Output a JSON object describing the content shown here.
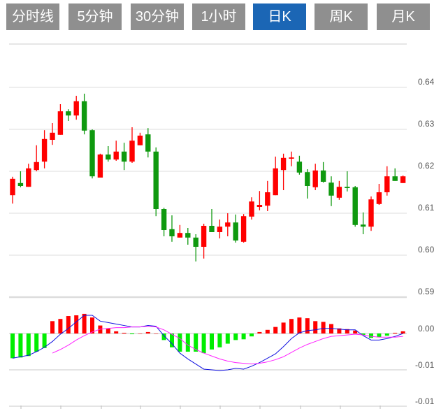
{
  "tabs": [
    {
      "label": "分时线",
      "active": false
    },
    {
      "label": "5分钟",
      "active": false
    },
    {
      "label": "30分钟",
      "active": false
    },
    {
      "label": "1小时",
      "active": false
    },
    {
      "label": "日K",
      "active": true
    },
    {
      "label": "周K",
      "active": false
    },
    {
      "label": "月K",
      "active": false
    }
  ],
  "colors": {
    "tab_bg": "#8f8f8f",
    "tab_active": "#1b66b5",
    "up": "#ff0000",
    "down": "#0f990f",
    "hist_up": "#ff0000",
    "hist_down": "#00ee00",
    "dif": "#1010e0",
    "dea": "#ff22ff"
  },
  "chart_data": [
    {
      "type": "candlestick",
      "title": "",
      "ylim": [
        0.59,
        0.64
      ],
      "yticks": [
        "0.64",
        "0.63",
        "0.62",
        "0.61",
        "0.60",
        "0.59"
      ],
      "ytick_values": [
        0.64,
        0.63,
        0.62,
        0.61,
        0.6,
        0.59
      ],
      "grid": true,
      "ohlc": [
        [
          0.6143,
          0.6187,
          0.6123,
          0.6182
        ],
        [
          0.6172,
          0.62,
          0.6162,
          0.6165
        ],
        [
          0.6163,
          0.6218,
          0.6163,
          0.6207
        ],
        [
          0.6203,
          0.6262,
          0.62,
          0.6222
        ],
        [
          0.6223,
          0.6298,
          0.6207,
          0.6277
        ],
        [
          0.6275,
          0.6315,
          0.6263,
          0.6292
        ],
        [
          0.6287,
          0.636,
          0.6287,
          0.6343
        ],
        [
          0.6343,
          0.6348,
          0.632,
          0.6333
        ],
        [
          0.6333,
          0.638,
          0.6323,
          0.6367
        ],
        [
          0.6367,
          0.6385,
          0.6288,
          0.6297
        ],
        [
          0.6298,
          0.63,
          0.6183,
          0.6188
        ],
        [
          0.6185,
          0.6242,
          0.6185,
          0.624
        ],
        [
          0.624,
          0.626,
          0.6223,
          0.6228
        ],
        [
          0.6228,
          0.6273,
          0.6225,
          0.6247
        ],
        [
          0.6247,
          0.6268,
          0.6203,
          0.6223
        ],
        [
          0.6223,
          0.6305,
          0.622,
          0.6273
        ],
        [
          0.6262,
          0.6292,
          0.6262,
          0.6285
        ],
        [
          0.6288,
          0.6303,
          0.6233,
          0.6247
        ],
        [
          0.6247,
          0.6257,
          0.6093,
          0.611
        ],
        [
          0.611,
          0.6113,
          0.6045,
          0.606
        ],
        [
          0.6062,
          0.6095,
          0.6032,
          0.6045
        ],
        [
          0.6042,
          0.6072,
          0.6042,
          0.6053
        ],
        [
          0.6053,
          0.6065,
          0.6025,
          0.6042
        ],
        [
          0.6042,
          0.605,
          0.5985,
          0.602
        ],
        [
          0.602,
          0.6075,
          0.5992,
          0.607
        ],
        [
          0.607,
          0.611,
          0.6055,
          0.6055
        ],
        [
          0.6055,
          0.6085,
          0.604,
          0.6068
        ],
        [
          0.6068,
          0.61,
          0.6045,
          0.6078
        ],
        [
          0.6078,
          0.6097,
          0.603,
          0.6035
        ],
        [
          0.6032,
          0.6098,
          0.603,
          0.6093
        ],
        [
          0.6092,
          0.6138,
          0.6085,
          0.6128
        ],
        [
          0.6115,
          0.6153,
          0.6107,
          0.612
        ],
        [
          0.6118,
          0.6177,
          0.6105,
          0.615
        ],
        [
          0.6143,
          0.6235,
          0.6143,
          0.6207
        ],
        [
          0.6203,
          0.6242,
          0.6155,
          0.6232
        ],
        [
          0.623,
          0.6247,
          0.6212,
          0.6233
        ],
        [
          0.6223,
          0.6237,
          0.6192,
          0.6197
        ],
        [
          0.6198,
          0.6205,
          0.6135,
          0.6165
        ],
        [
          0.6162,
          0.6218,
          0.6155,
          0.6202
        ],
        [
          0.6202,
          0.6222,
          0.6173,
          0.6175
        ],
        [
          0.6173,
          0.6188,
          0.6117,
          0.6142
        ],
        [
          0.6137,
          0.6177,
          0.6132,
          0.6163
        ],
        [
          0.6163,
          0.62,
          0.6152,
          0.616
        ],
        [
          0.6162,
          0.6165,
          0.6068,
          0.6072
        ],
        [
          0.6073,
          0.6102,
          0.605,
          0.6068
        ],
        [
          0.6068,
          0.614,
          0.6058,
          0.6133
        ],
        [
          0.6122,
          0.617,
          0.612,
          0.615
        ],
        [
          0.615,
          0.6212,
          0.6142,
          0.6188
        ],
        [
          0.6188,
          0.6207,
          0.6177,
          0.6177
        ],
        [
          0.6172,
          0.619,
          0.6172,
          0.6188
        ]
      ]
    },
    {
      "type": "macd",
      "yticks": [
        "0.00",
        "-0.01",
        "-0.01"
      ],
      "ytick_values": [
        0,
        -0.005,
        -0.01
      ],
      "ylim": [
        -0.01,
        0.0009
      ],
      "hist": [
        -0.0034,
        -0.0033,
        -0.0031,
        -0.0025,
        -0.002,
        0.0017,
        0.002,
        0.0024,
        0.0025,
        0.0027,
        0.0022,
        0.0011,
        0.0007,
        0.0003,
        0.0001,
        -0.0001,
        0,
        0.0002,
        0,
        -0.0009,
        -0.0019,
        -0.0025,
        -0.0025,
        -0.0025,
        -0.0027,
        -0.0022,
        -0.0019,
        -0.0014,
        -0.0009,
        -0.0008,
        -0.0004,
        0.0002,
        0.0005,
        0.0009,
        0.0015,
        0.002,
        0.0022,
        0.0021,
        0.0017,
        0.0016,
        0.0013,
        0.0007,
        0.0006,
        0.0004,
        -0.0002,
        -0.0006,
        -0.0005,
        -0.0003,
        0.0001,
        0.0003
      ],
      "dif": [
        -0.0034,
        -0.0032,
        -0.003,
        -0.0025,
        -0.0019,
        -0.0011,
        -0.0001,
        0.0007,
        0.0016,
        0.0025,
        0.0025,
        0.0017,
        0.0015,
        0.0013,
        0.0011,
        0.0009,
        0.0009,
        0.0011,
        0.001,
        -0.0003,
        -0.0014,
        -0.0027,
        -0.0035,
        -0.0042,
        -0.0049,
        -0.005,
        -0.0051,
        -0.005,
        -0.0048,
        -0.0049,
        -0.0045,
        -0.004,
        -0.0034,
        -0.0028,
        -0.0018,
        -0.0007,
        0.0001,
        0.0004,
        0.0005,
        0.0007,
        0.0007,
        0.0006,
        0.0005,
        0.0005,
        -0.0003,
        -0.0009,
        -0.0009,
        -0.0007,
        -0.0004,
        0.0
      ],
      "dea": [
        null,
        null,
        null,
        null,
        null,
        -0.0027,
        -0.0022,
        -0.0016,
        -0.0009,
        -0.0003,
        0.0002,
        0.0006,
        0.0007,
        0.0008,
        0.0008,
        0.0009,
        0.0009,
        0.001,
        0.0009,
        0.0005,
        -0.0001,
        -0.0007,
        -0.0016,
        -0.0022,
        -0.0027,
        -0.0031,
        -0.0035,
        -0.0038,
        -0.004,
        -0.0041,
        -0.0042,
        -0.0041,
        -0.0039,
        -0.0036,
        -0.0032,
        -0.0026,
        -0.002,
        -0.0015,
        -0.0011,
        -0.0007,
        -0.0004,
        -0.0003,
        -0.0002,
        -0.0001,
        -0.0002,
        -0.0004,
        -0.0005,
        -0.0005,
        -0.0005,
        -0.0004
      ]
    }
  ]
}
